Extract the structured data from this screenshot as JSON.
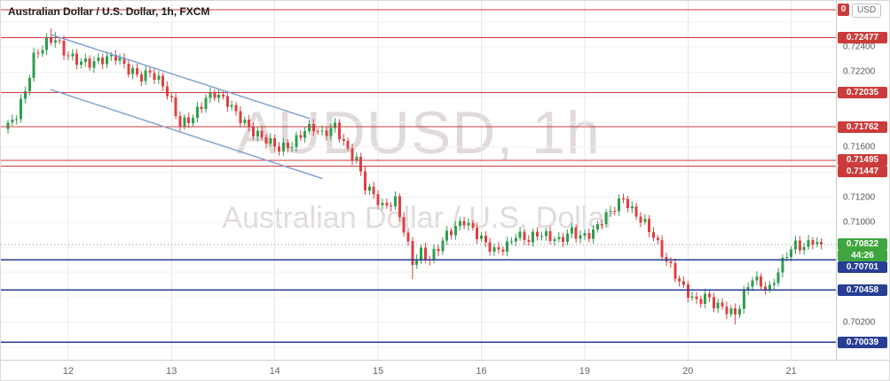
{
  "header": {
    "title": "Australian Dollar / U.S. Dollar, 1h, FXCM"
  },
  "watermark": {
    "line1": "AUDUSD, 1h",
    "line2": "Australian Dollar / U.S. Dollar"
  },
  "price_axis": {
    "currency_button": "USD",
    "clipped_top_label": "0",
    "ticks": [
      "0.72400",
      "0.72200",
      "0.71600",
      "0.71200",
      "0.71000",
      "0.70200"
    ],
    "last_price": {
      "label": "0.70822",
      "countdown": "44:26"
    }
  },
  "chart_data": {
    "type": "candlestick",
    "symbol": "AUDUSD",
    "interval": "1h",
    "exchange": "FXCM",
    "title": "Australian Dollar / U.S. Dollar, 1h, FXCM",
    "last_price": 0.70822,
    "visible_price_range": [
      0.699,
      0.7277
    ],
    "bars_total": 190,
    "grid_price_min": 0.7,
    "grid_price_max": 0.726,
    "grid_price_step": 0.002,
    "day_start_bars": [
      14,
      38,
      62,
      86,
      110,
      134,
      158,
      182
    ],
    "day_labels": [
      "12",
      "13",
      "14",
      "15",
      "16",
      "19",
      "20",
      "21"
    ],
    "levels": [
      {
        "price": 0.727,
        "color": "red",
        "label": ""
      },
      {
        "price": 0.72477,
        "color": "red",
        "label": "0.72477"
      },
      {
        "price": 0.72035,
        "color": "red",
        "label": "0.72035"
      },
      {
        "price": 0.71762,
        "color": "red",
        "label": "0.71762"
      },
      {
        "price": 0.71495,
        "color": "red",
        "label": "0.71495"
      },
      {
        "price": 0.71447,
        "color": "red",
        "label": "0.71447"
      },
      {
        "price": 0.70701,
        "color": "navy",
        "label": "0.70701"
      },
      {
        "price": 0.70458,
        "color": "navy",
        "label": "0.70458"
      },
      {
        "price": 0.70039,
        "color": "navy",
        "label": "0.70039"
      }
    ],
    "trendlines": [
      {
        "bar1": 10,
        "price1": 0.725,
        "bar2": 70,
        "price2": 0.7183
      },
      {
        "bar1": 10,
        "price1": 0.7206,
        "bar2": 73,
        "price2": 0.7135
      }
    ],
    "close_waypoints": [
      [
        0,
        0.7177
      ],
      [
        2,
        0.7186
      ],
      [
        4,
        0.7205
      ],
      [
        6,
        0.7232
      ],
      [
        9,
        0.7244
      ],
      [
        11,
        0.7247
      ],
      [
        13,
        0.7236
      ],
      [
        16,
        0.7229
      ],
      [
        19,
        0.7227
      ],
      [
        22,
        0.723
      ],
      [
        25,
        0.7233
      ],
      [
        28,
        0.7222
      ],
      [
        31,
        0.7216
      ],
      [
        33,
        0.722
      ],
      [
        36,
        0.721
      ],
      [
        38,
        0.7196
      ],
      [
        40,
        0.7178
      ],
      [
        43,
        0.7184
      ],
      [
        46,
        0.7199
      ],
      [
        48,
        0.7203
      ],
      [
        51,
        0.7196
      ],
      [
        54,
        0.7183
      ],
      [
        57,
        0.7172
      ],
      [
        60,
        0.7166
      ],
      [
        63,
        0.7159
      ],
      [
        66,
        0.7162
      ],
      [
        69,
        0.7174
      ],
      [
        71,
        0.7176
      ],
      [
        73,
        0.717
      ],
      [
        76,
        0.7177
      ],
      [
        79,
        0.7157
      ],
      [
        81,
        0.715
      ],
      [
        83,
        0.7129
      ],
      [
        85,
        0.7122
      ],
      [
        87,
        0.7112
      ],
      [
        90,
        0.7117
      ],
      [
        92,
        0.7094
      ],
      [
        94,
        0.7068
      ],
      [
        96,
        0.7076
      ],
      [
        98,
        0.707
      ],
      [
        100,
        0.708
      ],
      [
        102,
        0.709
      ],
      [
        104,
        0.7096
      ],
      [
        106,
        0.7101
      ],
      [
        108,
        0.7094
      ],
      [
        111,
        0.7083
      ],
      [
        113,
        0.7077
      ],
      [
        116,
        0.7081
      ],
      [
        118,
        0.709
      ],
      [
        121,
        0.7086
      ],
      [
        123,
        0.7091
      ],
      [
        126,
        0.7088
      ],
      [
        128,
        0.7085
      ],
      [
        131,
        0.7093
      ],
      [
        133,
        0.7088
      ],
      [
        136,
        0.7092
      ],
      [
        138,
        0.7102
      ],
      [
        141,
        0.7112
      ],
      [
        143,
        0.7119
      ],
      [
        145,
        0.7109
      ],
      [
        148,
        0.7099
      ],
      [
        150,
        0.7089
      ],
      [
        152,
        0.7075
      ],
      [
        155,
        0.7058
      ],
      [
        157,
        0.7047
      ],
      [
        160,
        0.7036
      ],
      [
        162,
        0.7041
      ],
      [
        164,
        0.7035
      ],
      [
        167,
        0.703
      ],
      [
        169,
        0.7026
      ],
      [
        171,
        0.7042
      ],
      [
        173,
        0.7056
      ],
      [
        175,
        0.705
      ],
      [
        177,
        0.7046
      ],
      [
        179,
        0.7061
      ],
      [
        181,
        0.7075
      ],
      [
        183,
        0.7082
      ],
      [
        185,
        0.708
      ],
      [
        187,
        0.7086
      ],
      [
        189,
        0.70822
      ]
    ],
    "wick_spikes": {
      "high": {
        "10": 0.0004,
        "11": 0.0003
      },
      "low": {
        "94": 0.0008,
        "169": 0.0004
      }
    }
  },
  "colors": {
    "up": "#2f9e4f",
    "down": "#df4040",
    "red_level": "#cc3b3b",
    "navy_level": "#263e93",
    "last_price_green": "#3fa63f",
    "trendline": "#7f9ed4",
    "grid_h": "#f2f2f2",
    "grid_v": "#e8e8e8",
    "current_dotted": "#888888",
    "watermark": "rgba(175,158,158,0.38)"
  }
}
